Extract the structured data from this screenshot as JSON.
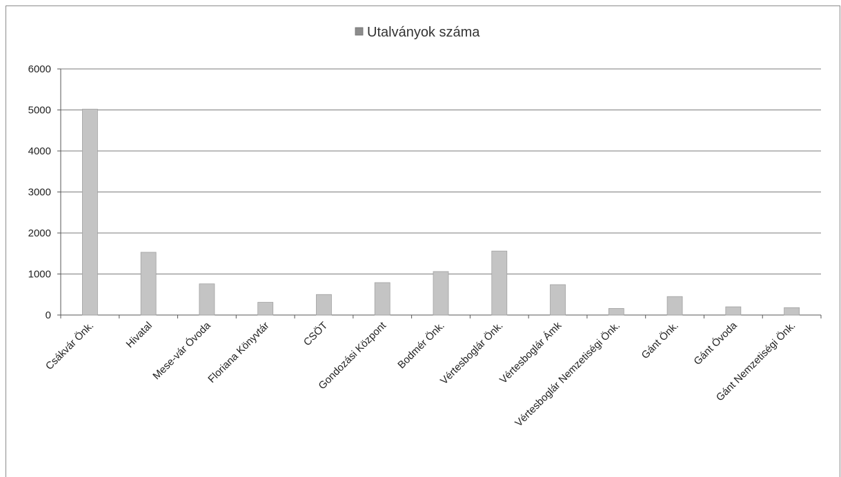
{
  "chart_data": {
    "type": "bar",
    "legend": {
      "label": "Utalványok száma",
      "position": "top"
    },
    "series": [
      {
        "name": "Utalványok száma",
        "color": "#c4c4c4",
        "values": [
          5020,
          1530,
          760,
          310,
          500,
          790,
          1060,
          1560,
          740,
          160,
          450,
          200,
          180
        ]
      }
    ],
    "categories": [
      "Csákvár Önk.",
      "Hivatal",
      "Mese-vár Óvoda",
      "Floriana Könyvtár",
      "CSÖT",
      "Gondozási Központ",
      "Bodmér Önk.",
      "Vértesboglár Önk.",
      "Vértesboglár Ámk",
      "Vértesboglár Nemzetiségi Önk.",
      "Gánt Önk.",
      "Gánt Óvoda",
      "Gánt Nemzetiségi Önk."
    ],
    "y_ticks": [
      "0",
      "1000",
      "2000",
      "3000",
      "4000",
      "5000",
      "6000"
    ],
    "ylim": [
      0,
      6000
    ],
    "grid": true
  }
}
